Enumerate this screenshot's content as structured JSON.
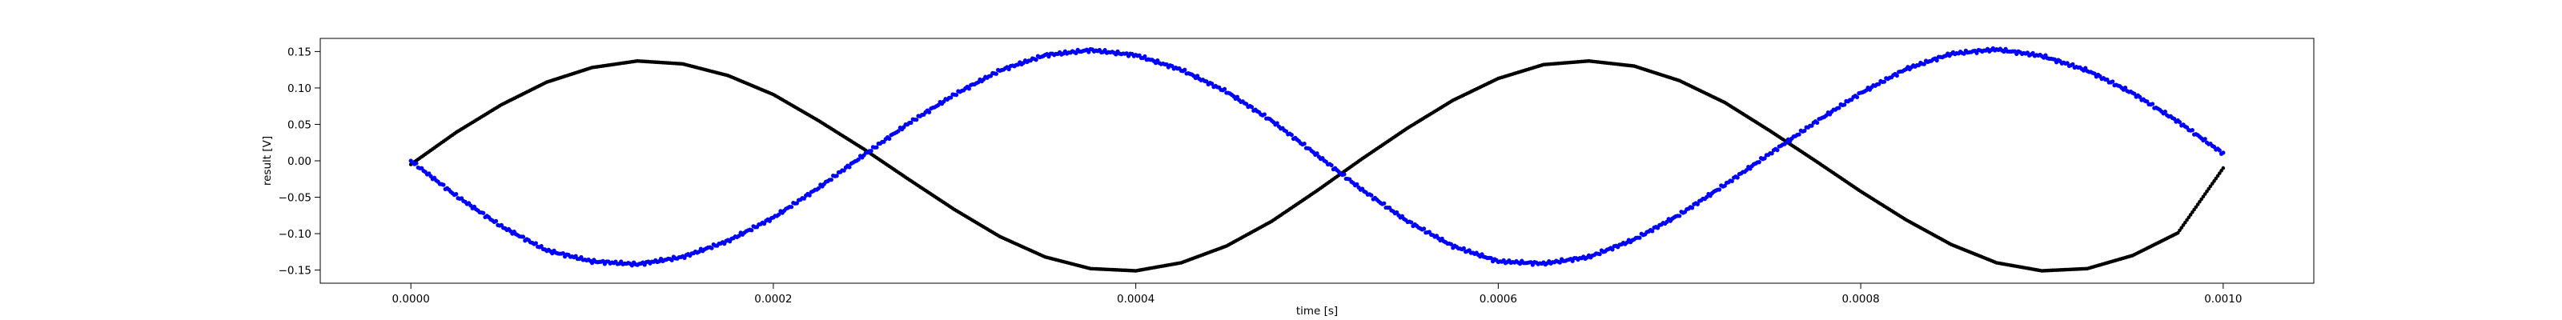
{
  "chart_data": {
    "type": "scatter",
    "title": "",
    "xlabel": "time [s]",
    "ylabel": "result [V]",
    "xlim": [
      -5e-05,
      0.00105
    ],
    "ylim": [
      -0.168,
      0.168
    ],
    "grid": false,
    "x_ticks": [
      0.0,
      0.0002,
      0.0004,
      0.0006,
      0.0008,
      0.001
    ],
    "x_tick_labels": [
      "0.0000",
      "0.0002",
      "0.0004",
      "0.0006",
      "0.0008",
      "0.0010"
    ],
    "y_ticks": [
      -0.15,
      -0.1,
      -0.05,
      0.0,
      0.05,
      0.1,
      0.15
    ],
    "y_tick_labels": [
      "−0.15",
      "−0.10",
      "−0.05",
      "0.00",
      "0.05",
      "0.10",
      "0.15"
    ],
    "series": [
      {
        "color": "#000000",
        "marker": "dot",
        "x": [
          0.0,
          2.5e-05,
          5e-05,
          7.5e-05,
          0.0001,
          0.000125,
          0.00015,
          0.000175,
          0.0002,
          0.000225,
          0.00025,
          0.000275,
          0.0003,
          0.000325,
          0.00035,
          0.000375,
          0.0004,
          0.000425,
          0.00045,
          0.000475,
          0.0005,
          0.000525,
          0.00055,
          0.000575,
          0.0006,
          0.000625,
          0.00065,
          0.000675,
          0.0007,
          0.000725,
          0.00075,
          0.000775,
          0.0008,
          0.000825,
          0.00085,
          0.000875,
          0.0009,
          0.000925,
          0.00095,
          0.000975,
          0.001
        ],
        "y": [
          -0.005,
          0.039,
          0.077,
          0.108,
          0.128,
          0.137,
          0.133,
          0.117,
          0.091,
          0.055,
          0.016,
          -0.026,
          -0.067,
          -0.104,
          -0.132,
          -0.148,
          -0.151,
          -0.14,
          -0.117,
          -0.083,
          -0.041,
          0.003,
          0.045,
          0.083,
          0.113,
          0.132,
          0.137,
          0.13,
          0.11,
          0.08,
          0.041,
          0.0,
          -0.042,
          -0.081,
          -0.115,
          -0.14,
          -0.151,
          -0.148,
          -0.13,
          -0.099,
          -0.01
        ]
      },
      {
        "color": "#0000ff",
        "marker": "dot",
        "x": [
          0.0,
          2.5e-05,
          5e-05,
          7.5e-05,
          0.0001,
          0.000125,
          0.00015,
          0.000175,
          0.0002,
          0.000225,
          0.00025,
          0.000275,
          0.0003,
          0.000325,
          0.00035,
          0.000375,
          0.0004,
          0.000425,
          0.00045,
          0.000475,
          0.0005,
          0.000525,
          0.00055,
          0.000575,
          0.0006,
          0.000625,
          0.00065,
          0.000675,
          0.0007,
          0.000725,
          0.00075,
          0.000775,
          0.0008,
          0.000825,
          0.00085,
          0.000875,
          0.0009,
          0.000925,
          0.00095,
          0.000975,
          0.001
        ],
        "y": [
          0.0,
          -0.048,
          -0.09,
          -0.123,
          -0.138,
          -0.142,
          -0.132,
          -0.11,
          -0.078,
          -0.037,
          0.008,
          0.052,
          0.091,
          0.124,
          0.145,
          0.152,
          0.145,
          0.125,
          0.095,
          0.055,
          0.008,
          -0.04,
          -0.083,
          -0.117,
          -0.138,
          -0.141,
          -0.132,
          -0.108,
          -0.074,
          -0.033,
          0.01,
          0.053,
          0.093,
          0.126,
          0.147,
          0.153,
          0.144,
          0.124,
          0.093,
          0.054,
          0.01
        ]
      }
    ]
  }
}
